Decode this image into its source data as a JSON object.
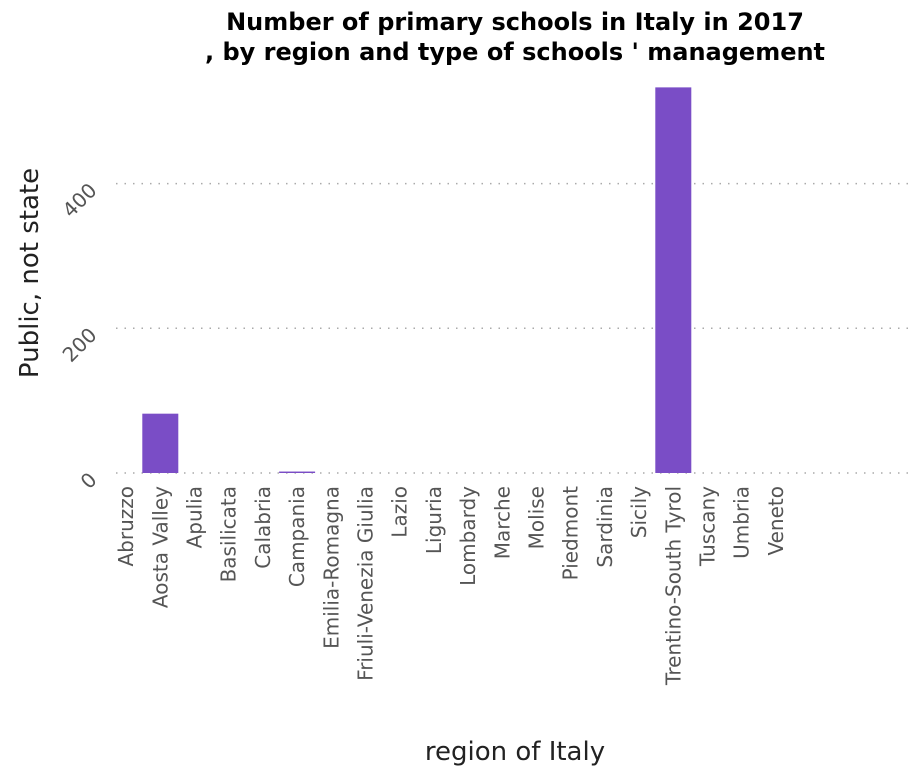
{
  "chart_data": {
    "type": "bar",
    "title": [
      "Number of primary schools in Italy in 2017",
      ", by region and type of schools ' management"
    ],
    "xlabel": "region of Italy",
    "ylabel": "Public, not state",
    "categories": [
      "Abruzzo",
      "Aosta Valley",
      "Apulia",
      "Basilicata",
      "Calabria",
      "Campania",
      "Emilia-Romagna",
      "Friuli-Venezia Giulia",
      "Lazio",
      "Liguria",
      "Lombardy",
      "Marche",
      "Molise",
      "Piedmont",
      "Sardinia",
      "Sicily",
      "Trentino-South Tyrol",
      "Tuscany",
      "Umbria",
      "Veneto"
    ],
    "values": [
      0,
      82,
      0,
      0,
      0,
      2,
      0,
      0,
      0,
      0,
      0,
      0,
      0,
      0,
      0,
      0,
      533,
      0,
      0,
      0
    ],
    "yticks": [
      0,
      200,
      400
    ],
    "ylim": [
      0,
      560
    ],
    "grid": true,
    "bar_color": "#7a4dc6"
  }
}
